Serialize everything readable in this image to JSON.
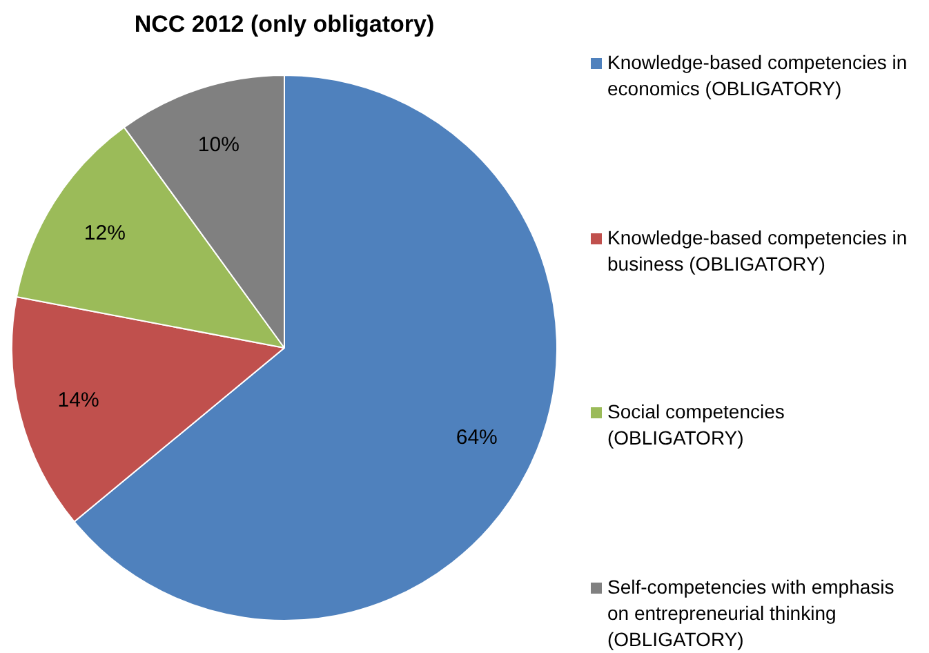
{
  "chart_data": {
    "type": "pie",
    "title": "NCC 2012 (only obligatory)",
    "categories": [
      "Knowledge-based competencies in economics (OBLIGATORY)",
      "Knowledge-based competencies in business (OBLIGATORY)",
      "Social competencies (OBLIGATORY)",
      "Self-competencies with emphasis on entrepreneurial thinking (OBLIGATORY)"
    ],
    "values": [
      64,
      14,
      12,
      10
    ],
    "colors": [
      "#4f81bd",
      "#c0504d",
      "#9bbb59",
      "#808080"
    ],
    "value_labels": [
      "64%",
      "14%",
      "12%",
      "10%"
    ],
    "legend": "right"
  }
}
